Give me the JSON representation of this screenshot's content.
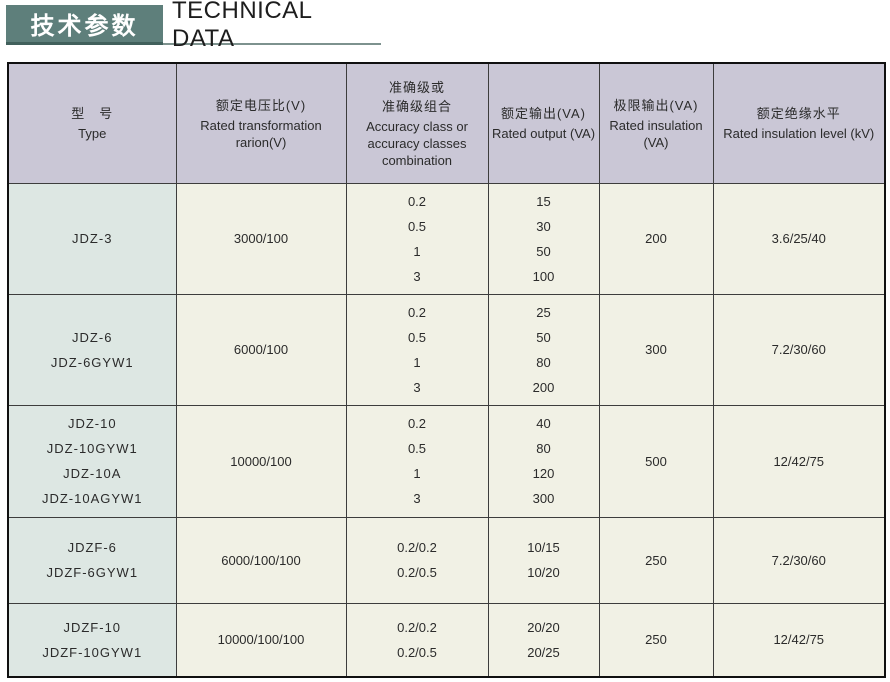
{
  "page": {
    "title_zh": "技术参数",
    "title_en": "TECHNICAL DATA"
  },
  "colors": {
    "title_bar_bg": "#5e7f7b",
    "title_underline": "#7d928e",
    "header_cell_bg": "#cac7d6",
    "type_cell_bg": "#dde7e3",
    "data_cell_bg": "#f1f1e5",
    "grid_line": "#3d3d3d",
    "outer_border": "#101010"
  },
  "table": {
    "columns": [
      {
        "zh": "型　号",
        "en": "Type"
      },
      {
        "zh": "额定电压比(V)",
        "en": "Rated transformation rarion(V)"
      },
      {
        "zh": "准确级或\n准确级组合",
        "en": "Accuracy class or accuracy classes combination"
      },
      {
        "zh": "额定输出(VA)",
        "en": "Rated output (VA)"
      },
      {
        "zh": "极限输出(VA)",
        "en": "Rated insulation (VA)"
      },
      {
        "zh": "额定绝缘水平",
        "en": "Rated insulation level (kV)"
      }
    ],
    "rows": [
      {
        "type": [
          "JDZ-3"
        ],
        "voltage_ratio": [
          "3000/100"
        ],
        "accuracy": [
          "0.2",
          "0.5",
          "1",
          "3"
        ],
        "rated_output": [
          "15",
          "30",
          "50",
          "100"
        ],
        "limit_output": [
          "200"
        ],
        "insulation_level": [
          "3.6/25/40"
        ]
      },
      {
        "type": [
          "JDZ-6",
          "JDZ-6GYW1"
        ],
        "voltage_ratio": [
          "6000/100"
        ],
        "accuracy": [
          "0.2",
          "0.5",
          "1",
          "3"
        ],
        "rated_output": [
          "25",
          "50",
          "80",
          "200"
        ],
        "limit_output": [
          "300"
        ],
        "insulation_level": [
          "7.2/30/60"
        ]
      },
      {
        "type": [
          "JDZ-10",
          "JDZ-10GYW1",
          "JDZ-10A",
          "JDZ-10AGYW1"
        ],
        "voltage_ratio": [
          "10000/100"
        ],
        "accuracy": [
          "0.2",
          "0.5",
          "1",
          "3"
        ],
        "rated_output": [
          "40",
          "80",
          "120",
          "300"
        ],
        "limit_output": [
          "500"
        ],
        "insulation_level": [
          "12/42/75"
        ]
      },
      {
        "type": [
          "JDZF-6",
          "JDZF-6GYW1"
        ],
        "voltage_ratio": [
          "6000/100/100"
        ],
        "accuracy": [
          "0.2/0.2",
          "0.2/0.5"
        ],
        "rated_output": [
          "10/15",
          "10/20"
        ],
        "limit_output": [
          "250"
        ],
        "insulation_level": [
          "7.2/30/60"
        ]
      },
      {
        "type": [
          "JDZF-10",
          "JDZF-10GYW1"
        ],
        "voltage_ratio": [
          "10000/100/100"
        ],
        "accuracy": [
          "0.2/0.2",
          "0.2/0.5"
        ],
        "rated_output": [
          "20/20",
          "20/25"
        ],
        "limit_output": [
          "250"
        ],
        "insulation_level": [
          "12/42/75"
        ]
      }
    ]
  }
}
